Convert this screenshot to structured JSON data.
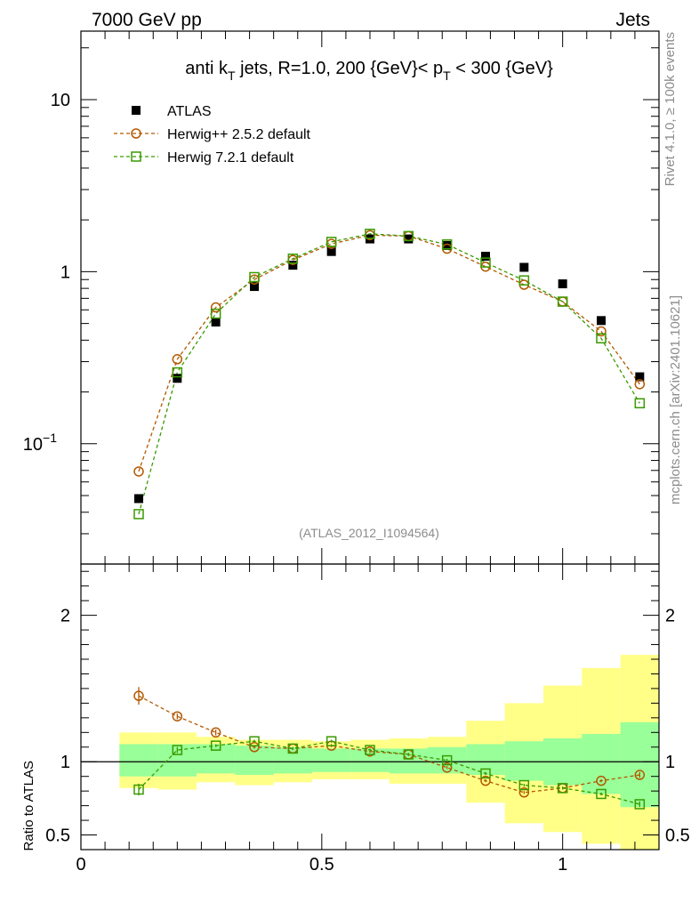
{
  "header": {
    "left_label": "7000 GeV pp",
    "right_label": "Jets"
  },
  "side_labels": {
    "rivet": "Rivet 4.1.0, ≥ 100k events",
    "mcplots": "mcplots.cern.ch [arXiv:2401.10621]"
  },
  "colors": {
    "atlas": "#000000",
    "herwigpp": "#b35900",
    "herwig7": "#3a9a00",
    "band_inner": "#99ff99",
    "band_outer": "#ffff88"
  },
  "chart_data": [
    {
      "type": "scatter",
      "title_parts": {
        "main": "anti k",
        "main_sub": "T",
        "jets": " jets, R=1.0,  200 {GeV}< p",
        "pt_sub": "T",
        "tail": " < 300 {GeV}"
      },
      "watermark": "(ATLAS_2012_I1094564)",
      "yscale": "log",
      "xlim": [
        0,
        1.2
      ],
      "ylim": [
        0.02,
        25
      ],
      "yticks": [
        {
          "value": 0.1,
          "base": "10",
          "exp": "−1"
        },
        {
          "value": 1,
          "base": "1",
          "exp": ""
        },
        {
          "value": 10,
          "base": "10",
          "exp": ""
        }
      ],
      "legend": [
        {
          "key": "atlas",
          "label": "ATLAS",
          "marker": "square-filled"
        },
        {
          "key": "herwigpp",
          "label": "Herwig++ 2.5.2 default",
          "marker": "circle-open"
        },
        {
          "key": "herwig7",
          "label": "Herwig 7.2.1 default",
          "marker": "square-open"
        }
      ],
      "x": [
        0.12,
        0.2,
        0.28,
        0.36,
        0.44,
        0.52,
        0.6,
        0.68,
        0.76,
        0.84,
        0.92,
        1.0,
        1.08,
        1.16
      ],
      "series": [
        {
          "key": "atlas",
          "name": "ATLAS",
          "values": [
            0.048,
            0.24,
            0.51,
            0.82,
            1.09,
            1.31,
            1.55,
            1.55,
            1.42,
            1.23,
            1.06,
            0.85,
            0.52,
            0.245
          ]
        },
        {
          "key": "herwigpp",
          "name": "Herwig++ 2.5.2 default",
          "values": [
            0.069,
            0.31,
            0.62,
            0.9,
            1.17,
            1.45,
            1.63,
            1.61,
            1.36,
            1.07,
            0.84,
            0.67,
            0.45,
            0.222
          ]
        },
        {
          "key": "herwig7",
          "name": "Herwig 7.2.1 default",
          "values": [
            0.039,
            0.26,
            0.57,
            0.93,
            1.19,
            1.49,
            1.66,
            1.61,
            1.44,
            1.13,
            0.89,
            0.67,
            0.41,
            0.172
          ]
        }
      ]
    },
    {
      "type": "scatter",
      "ylabel": "Ratio to ATLAS",
      "xlim": [
        0,
        1.2
      ],
      "ylim": [
        0.4,
        2.35
      ],
      "xticks": [
        {
          "value": 0,
          "label": "0"
        },
        {
          "value": 0.5,
          "label": "0.5"
        },
        {
          "value": 1,
          "label": "1"
        }
      ],
      "yticks": [
        {
          "value": 0.5,
          "label": "0.5"
        },
        {
          "value": 1,
          "label": "1"
        },
        {
          "value": 2,
          "label": "2"
        }
      ],
      "bands": {
        "edges": [
          0.08,
          0.16,
          0.24,
          0.32,
          0.4,
          0.48,
          0.56,
          0.64,
          0.72,
          0.8,
          0.88,
          0.96,
          1.04,
          1.12,
          1.2
        ],
        "inner_lo": [
          0.9,
          0.9,
          0.92,
          0.91,
          0.92,
          0.93,
          0.93,
          0.92,
          0.92,
          0.91,
          0.87,
          0.84,
          0.78,
          0.69,
          0.62
        ],
        "inner_hi": [
          1.12,
          1.12,
          1.12,
          1.11,
          1.1,
          1.09,
          1.09,
          1.09,
          1.1,
          1.12,
          1.14,
          1.16,
          1.19,
          1.27,
          1.34
        ],
        "outer_lo": [
          0.82,
          0.81,
          0.86,
          0.84,
          0.86,
          0.88,
          0.88,
          0.85,
          0.85,
          0.72,
          0.58,
          0.52,
          0.44,
          0.36,
          0.36
        ],
        "outer_hi": [
          1.2,
          1.2,
          1.17,
          1.15,
          1.15,
          1.14,
          1.15,
          1.16,
          1.17,
          1.28,
          1.4,
          1.52,
          1.64,
          1.73,
          1.76
        ]
      },
      "x": [
        0.12,
        0.2,
        0.28,
        0.36,
        0.44,
        0.52,
        0.6,
        0.68,
        0.76,
        0.84,
        0.92,
        1.0,
        1.08,
        1.16
      ],
      "series": [
        {
          "key": "herwigpp",
          "name": "Herwig++ 2.5.2 default",
          "values": [
            1.45,
            1.31,
            1.2,
            1.1,
            1.09,
            1.11,
            1.07,
            1.05,
            0.96,
            0.87,
            0.79,
            0.82,
            0.87,
            0.91
          ],
          "errors": [
            0.06,
            0.02,
            0.02,
            0.01,
            0.01,
            0.01,
            0.01,
            0.01,
            0.01,
            0.01,
            0.01,
            0.01,
            0.01,
            0.02
          ]
        },
        {
          "key": "herwig7",
          "name": "Herwig 7.2.1 default",
          "values": [
            0.81,
            1.08,
            1.11,
            1.14,
            1.09,
            1.14,
            1.08,
            1.05,
            1.01,
            0.92,
            0.84,
            0.82,
            0.78,
            0.71
          ],
          "errors": [
            0.04,
            0.02,
            0.01,
            0.01,
            0.01,
            0.01,
            0.01,
            0.01,
            0.01,
            0.01,
            0.01,
            0.01,
            0.01,
            0.02
          ]
        }
      ]
    }
  ]
}
